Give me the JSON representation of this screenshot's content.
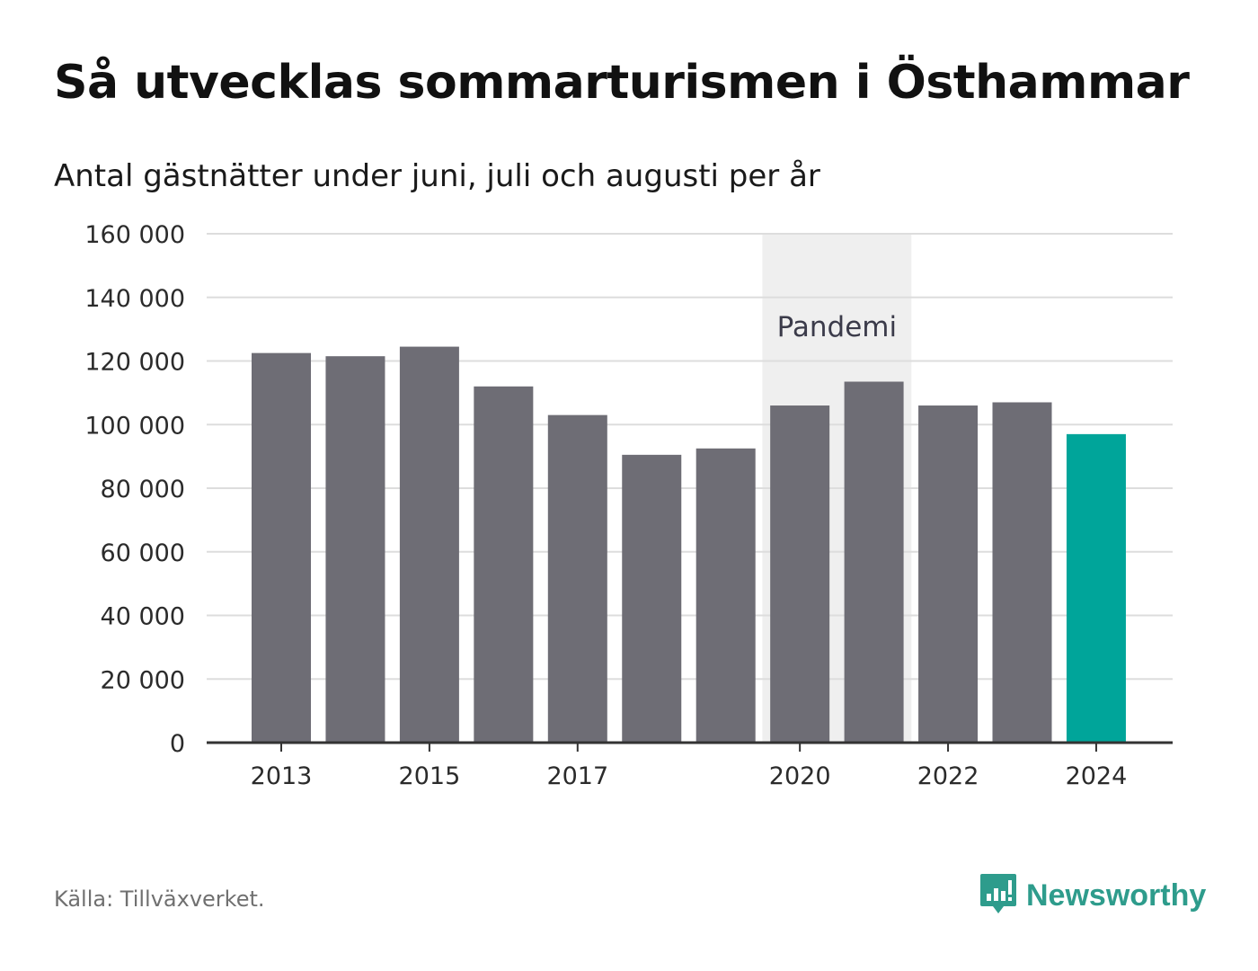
{
  "header": {
    "title": "Så utvecklas sommarturismen i Östhammar",
    "subtitle": "Antal gästnätter under juni, juli och augusti per år"
  },
  "footer": {
    "source": "Källa: Tillväxverket.",
    "brand": "Newsworthy",
    "brand_icon": "bar-chart-speech-bubble-icon"
  },
  "colors": {
    "bar": "#6e6d75",
    "highlight": "#00a59a",
    "band": "#efefef",
    "grid": "#dddddd",
    "axis": "#333333",
    "brand": "#2e9c8c"
  },
  "chart_data": {
    "type": "bar",
    "x": [
      2013,
      2014,
      2015,
      2016,
      2017,
      2018,
      2019,
      2020,
      2021,
      2022,
      2023,
      2024
    ],
    "values": [
      122500,
      121500,
      124500,
      112000,
      103000,
      90500,
      92500,
      106000,
      113500,
      106000,
      107000,
      97000
    ],
    "highlight_index": 11,
    "x_ticks": [
      2013,
      2015,
      2017,
      2020,
      2022,
      2024
    ],
    "ylim": [
      0,
      160000
    ],
    "y_ticks": [
      0,
      20000,
      40000,
      60000,
      80000,
      100000,
      120000,
      140000,
      160000
    ],
    "y_tick_labels": [
      "0",
      "20 000",
      "40 000",
      "60 000",
      "80 000",
      "100 000",
      "120 000",
      "140 000",
      "160 000"
    ],
    "band": {
      "label": "Pandemi",
      "from": 2020,
      "to": 2021
    },
    "grid": true,
    "legend": "none",
    "xlabel": "",
    "ylabel": ""
  }
}
